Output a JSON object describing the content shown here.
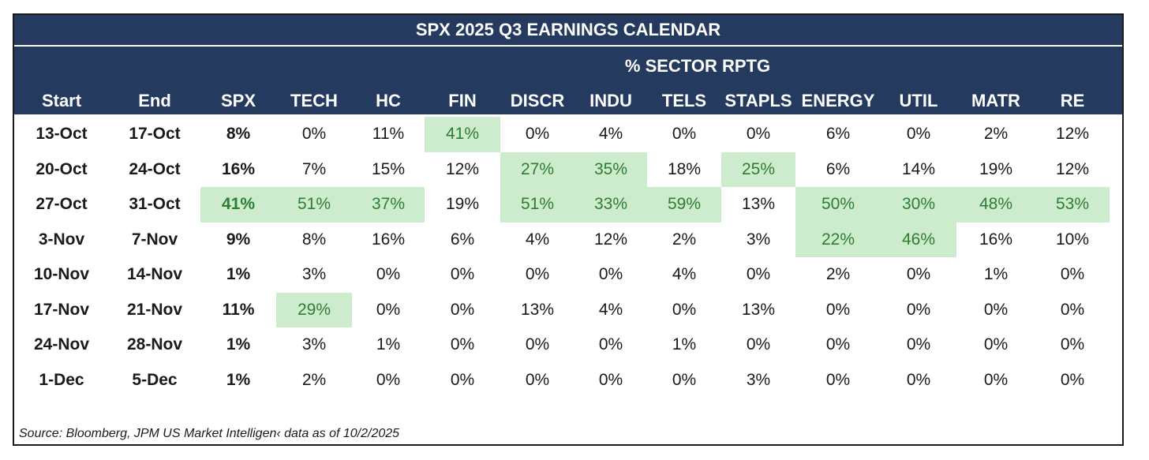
{
  "chart_data": {
    "type": "table",
    "title": "SPX 2025 Q3 EARNINGS CALENDAR",
    "super_header": "% SECTOR RPTG",
    "columns": [
      "Start",
      "End",
      "SPX",
      "TECH",
      "HC",
      "FIN",
      "DISCR",
      "INDU",
      "TELS",
      "STAPLS",
      "ENERGY",
      "UTIL",
      "MATR",
      "RE"
    ],
    "rows": [
      {
        "cells": [
          "13-Oct",
          "17-Oct",
          "8%",
          "0%",
          "11%",
          "41%",
          "0%",
          "4%",
          "0%",
          "0%",
          "6%",
          "0%",
          "2%",
          "12%"
        ],
        "highlight": [
          5
        ]
      },
      {
        "cells": [
          "20-Oct",
          "24-Oct",
          "16%",
          "7%",
          "15%",
          "12%",
          "27%",
          "35%",
          "18%",
          "25%",
          "6%",
          "14%",
          "19%",
          "12%"
        ],
        "highlight": [
          6,
          7,
          9
        ]
      },
      {
        "cells": [
          "27-Oct",
          "31-Oct",
          "41%",
          "51%",
          "37%",
          "19%",
          "51%",
          "33%",
          "59%",
          "13%",
          "50%",
          "30%",
          "48%",
          "53%"
        ],
        "highlight": [
          2,
          3,
          4,
          6,
          7,
          8,
          10,
          11,
          12,
          13
        ]
      },
      {
        "cells": [
          "3-Nov",
          "7-Nov",
          "9%",
          "8%",
          "16%",
          "6%",
          "4%",
          "12%",
          "2%",
          "3%",
          "22%",
          "46%",
          "16%",
          "10%"
        ],
        "highlight": [
          10,
          11
        ]
      },
      {
        "cells": [
          "10-Nov",
          "14-Nov",
          "1%",
          "3%",
          "0%",
          "0%",
          "0%",
          "0%",
          "4%",
          "0%",
          "2%",
          "0%",
          "1%",
          "0%"
        ],
        "highlight": []
      },
      {
        "cells": [
          "17-Nov",
          "21-Nov",
          "11%",
          "29%",
          "0%",
          "0%",
          "13%",
          "4%",
          "0%",
          "13%",
          "0%",
          "0%",
          "0%",
          "0%"
        ],
        "highlight": [
          3
        ]
      },
      {
        "cells": [
          "24-Nov",
          "28-Nov",
          "1%",
          "3%",
          "1%",
          "0%",
          "0%",
          "0%",
          "1%",
          "0%",
          "0%",
          "0%",
          "0%",
          "0%"
        ],
        "highlight": []
      },
      {
        "cells": [
          "1-Dec",
          "5-Dec",
          "1%",
          "2%",
          "0%",
          "0%",
          "0%",
          "0%",
          "0%",
          "3%",
          "0%",
          "0%",
          "0%",
          "0%"
        ],
        "highlight": []
      }
    ],
    "bold_columns": [
      0,
      1,
      2
    ],
    "source": "Source: Bloomberg, JPM US Market Intelligen‹ data as of 10/2/2025"
  },
  "colors": {
    "header_bg": "#243a5e",
    "header_text": "#ffffff",
    "highlight_bg": "#cdeccd",
    "highlight_text": "#2e7d32"
  }
}
